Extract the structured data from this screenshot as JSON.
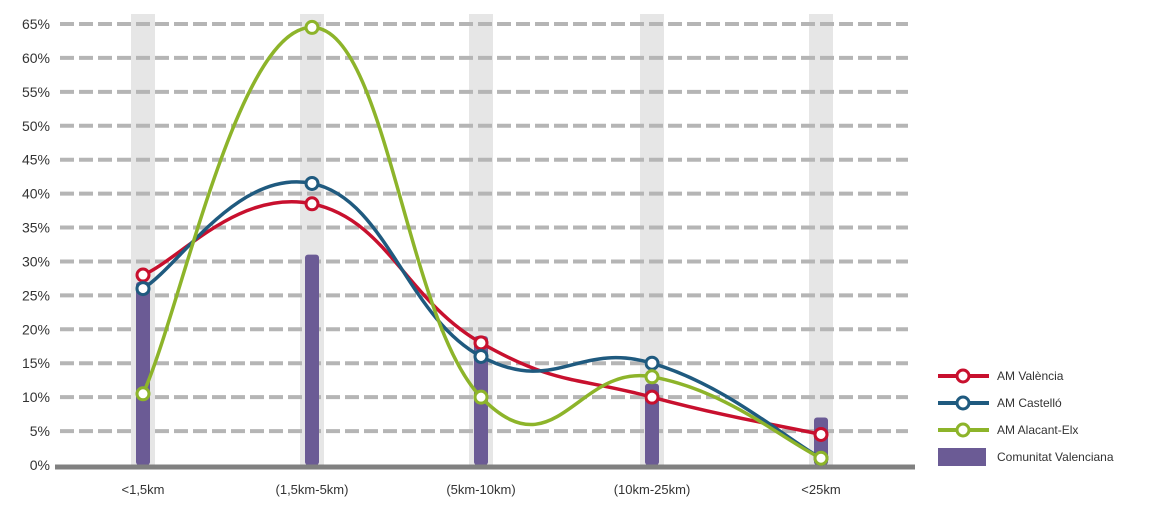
{
  "chart_data": {
    "type": "line",
    "categories": [
      "<1,5km",
      "(1,5km-5km)",
      "(5km-10km)",
      "(10km-25km)",
      "<25km"
    ],
    "ylim": [
      0,
      65
    ],
    "yticks": [
      "0%",
      "5%",
      "10%",
      "15%",
      "20%",
      "25%",
      "30%",
      "35%",
      "40%",
      "45%",
      "50%",
      "55%",
      "60%",
      "65%"
    ],
    "grid": true,
    "legend_position": "bottom-right",
    "bars": {
      "name": "Comunitat Valenciana",
      "color": "#6b5b95",
      "values": [
        27,
        31,
        19,
        12,
        7
      ]
    },
    "series": [
      {
        "name": "AM València",
        "color": "#c8102e",
        "values": [
          28,
          38.5,
          18,
          10,
          4.5
        ]
      },
      {
        "name": "AM Castelló",
        "color": "#1f5a7f",
        "values": [
          26,
          41.5,
          16,
          15,
          1
        ]
      },
      {
        "name": "AM Alacant-Elx",
        "color": "#8db42a",
        "values": [
          10.5,
          64.5,
          10,
          13,
          1
        ]
      }
    ],
    "background_column_color": "#e6e6e6",
    "axis_color": "#808080"
  }
}
